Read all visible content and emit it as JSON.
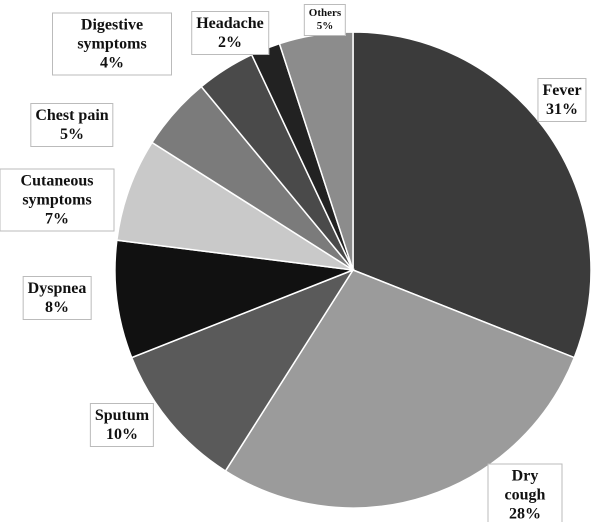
{
  "chart_data": {
    "type": "pie",
    "categories": [
      "Fever",
      "Dry cough",
      "Sputum",
      "Dyspnea",
      "Cutaneous symptoms",
      "Chest pain",
      "Digestive symptoms",
      "Headache",
      "Others"
    ],
    "values": [
      31,
      28,
      10,
      8,
      7,
      5,
      4,
      2,
      5
    ],
    "value_labels": [
      "31%",
      "28%",
      "10%",
      "8%",
      "7%",
      "5%",
      "4%",
      "2%",
      "5%"
    ],
    "colors": [
      "#3b3b3b",
      "#9b9b9b",
      "#5a5a5a",
      "#111111",
      "#c9c9c9",
      "#7b7b7b",
      "#4a4a4a",
      "#222222",
      "#8c8c8c"
    ]
  }
}
